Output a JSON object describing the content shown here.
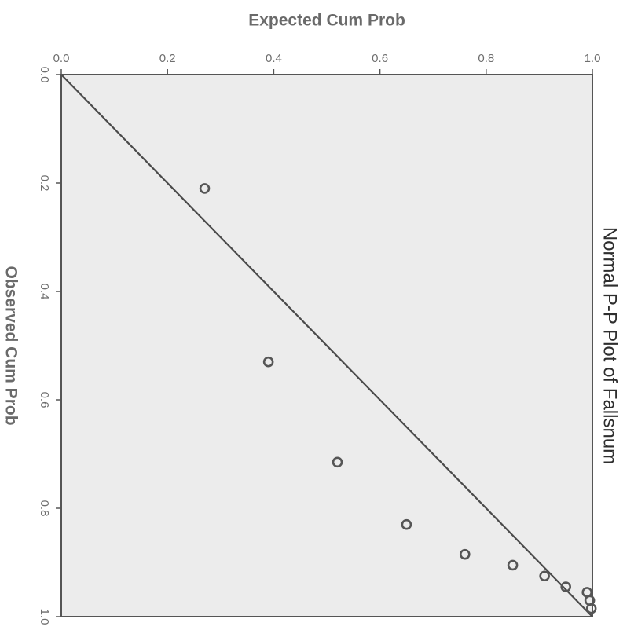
{
  "chart_data": {
    "type": "scatter",
    "title": "Normal P-P Plot of Fallsnum",
    "xlabel": "Observed Cum Prob",
    "ylabel": "Expected Cum Prob",
    "xlim": [
      0,
      1
    ],
    "ylim": [
      0,
      1
    ],
    "x_ticks": [
      "0.0",
      "0.2",
      "0.4",
      "0.6",
      "0.8",
      "1.0"
    ],
    "y_ticks": [
      "0.0",
      "0.2",
      "0.4",
      "0.6",
      "0.8",
      "1.0"
    ],
    "grid": false,
    "reference_line": [
      [
        0,
        0
      ],
      [
        1,
        1
      ]
    ],
    "points": [
      {
        "x": 0.21,
        "y": 0.27
      },
      {
        "x": 0.53,
        "y": 0.39
      },
      {
        "x": 0.715,
        "y": 0.52
      },
      {
        "x": 0.83,
        "y": 0.65
      },
      {
        "x": 0.885,
        "y": 0.76
      },
      {
        "x": 0.905,
        "y": 0.85
      },
      {
        "x": 0.925,
        "y": 0.91
      },
      {
        "x": 0.945,
        "y": 0.95
      },
      {
        "x": 0.955,
        "y": 0.99
      },
      {
        "x": 0.97,
        "y": 0.995
      },
      {
        "x": 0.985,
        "y": 0.998
      }
    ],
    "colors": {
      "plot_background": "#ececec",
      "frame": "#555555",
      "reference_line": "#4a4a4a",
      "marker": "#555555"
    }
  }
}
